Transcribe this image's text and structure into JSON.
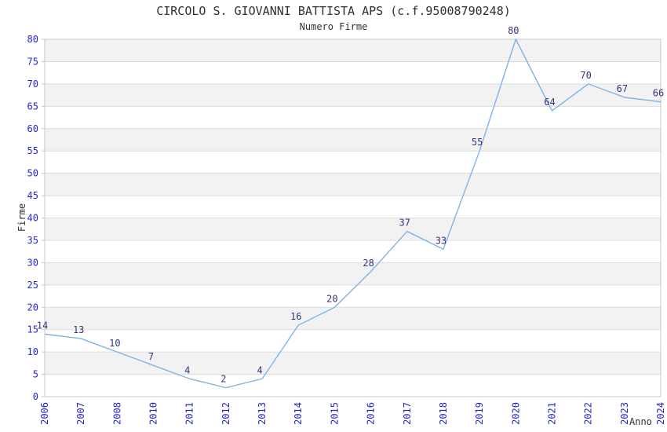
{
  "chart_data": {
    "type": "line",
    "title": "CIRCOLO S. GIOVANNI BATTISTA APS (c.f.95008790248)",
    "subtitle": "Numero Firme",
    "xlabel": "Anno",
    "ylabel": "Firme",
    "categories": [
      "2006",
      "2007",
      "2008",
      "2010",
      "2011",
      "2012",
      "2013",
      "2014",
      "2015",
      "2016",
      "2017",
      "2018",
      "2019",
      "2020",
      "2021",
      "2022",
      "2023",
      "2024"
    ],
    "values": [
      14,
      13,
      10,
      7,
      4,
      2,
      4,
      16,
      20,
      28,
      37,
      33,
      55,
      80,
      64,
      70,
      67,
      66
    ],
    "ylim": [
      0,
      80
    ],
    "ytick_step": 5,
    "yticks": [
      0,
      5,
      10,
      15,
      20,
      25,
      30,
      35,
      40,
      45,
      50,
      55,
      60,
      65,
      70,
      75,
      80
    ],
    "grid": true,
    "legend": "none",
    "x_tick_rotation": -90,
    "band_pattern": "alternating 5-unit horizontal bands, shaded starting at 5-10",
    "colors": {
      "series_line": "#7fb3e8",
      "data_label": "#34347e",
      "tick_label": "#2424ce",
      "text": "#303030",
      "band_fill": "#f2f2f2",
      "gridline": "#dcdcdc",
      "axis_border": "#c8c8c8",
      "background": "#ffffff"
    }
  }
}
